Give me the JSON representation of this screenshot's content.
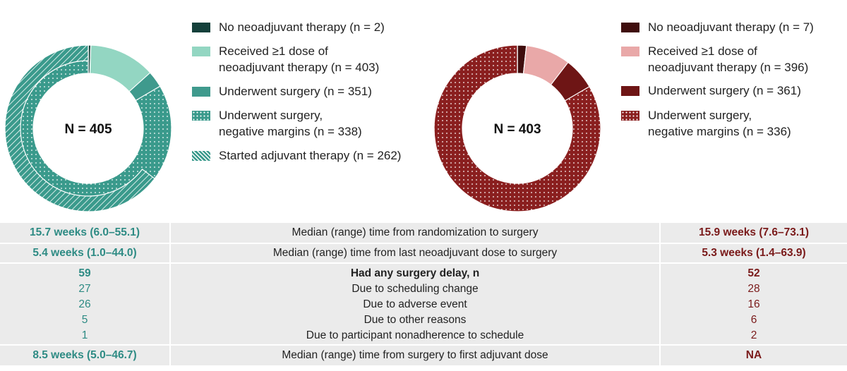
{
  "chart_data": [
    {
      "type": "donut",
      "total": {
        "value": 405,
        "label": "N = 405"
      },
      "series": [
        {
          "name": "No neoadjuvant therapy (n = 2)",
          "color": "#14403b",
          "value": 2
        },
        {
          "name": "Received ≥1 dose of\nneoadjuvant therapy (n = 403)",
          "color": "#93d6c2",
          "value": 403
        },
        {
          "name": "Underwent surgery (n = 351)",
          "color": "#3f9a8d",
          "value": 351
        },
        {
          "name": "Underwent surgery,\nnegative margins (n = 338)",
          "color": "#3a9a8c",
          "value": 338,
          "pattern": "dots"
        },
        {
          "name": "Started adjuvant therapy (n = 262)",
          "color": "#3a9a8c",
          "value": 262,
          "pattern": "hatch"
        }
      ]
    },
    {
      "type": "donut",
      "total": {
        "value": 403,
        "label": "N = 403"
      },
      "series": [
        {
          "name": "No neoadjuvant therapy (n = 7)",
          "color": "#3f0d0d",
          "value": 7
        },
        {
          "name": "Received ≥1 dose of\nneoadjuvant therapy (n = 396)",
          "color": "#e9a8a8",
          "value": 396
        },
        {
          "name": "Underwent surgery (n = 361)",
          "color": "#6e1515",
          "value": 361
        },
        {
          "name": "Underwent surgery,\nnegative margins (n = 336)",
          "color": "#8a1f1f",
          "value": 336,
          "pattern": "dots"
        }
      ]
    }
  ],
  "table": {
    "rows": [
      [
        "15.7 weeks (6.0–55.1)",
        "Median (range) time from randomization to surgery",
        "15.9 weeks (7.6–73.1)"
      ],
      [
        "5.4 weeks (1.0–44.0)",
        "Median (range) time from last neoadjuvant dose to surgery",
        "5.3 weeks (1.4–63.9)"
      ],
      [
        "59",
        "Had any surgery delay, n",
        "52"
      ],
      [
        "27",
        "Due to scheduling change",
        "28"
      ],
      [
        "26",
        "Due to adverse event",
        "16"
      ],
      [
        "5",
        "Due to other reasons",
        "6"
      ],
      [
        "1",
        "Due to participant nonadherence to schedule",
        "2"
      ],
      [
        "8.5 weeks (5.0–46.7)",
        "Median (range) time from surgery to first adjuvant dose",
        "NA"
      ]
    ]
  }
}
